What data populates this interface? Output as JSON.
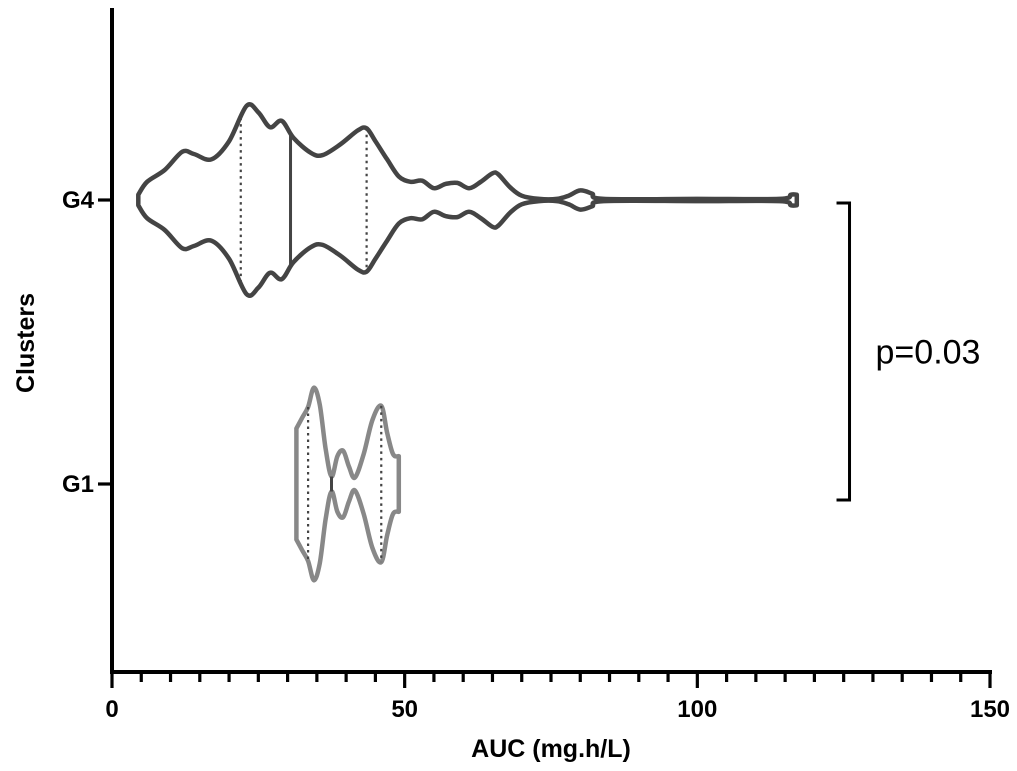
{
  "chart_data": {
    "type": "violin",
    "orientation": "horizontal",
    "xlabel": "AUC (mg.h/L)",
    "ylabel": "Clusters",
    "xlim": [
      0,
      150
    ],
    "x_ticks": [
      0,
      50,
      100,
      150
    ],
    "x_minor_step": 5,
    "categories": [
      "G4",
      "G1"
    ],
    "series": [
      {
        "category": "G4",
        "color": "#444444",
        "min": 4.5,
        "max": 117,
        "median": 30.5,
        "quartiles": [
          22,
          43.5
        ],
        "density": [
          [
            4.5,
            0.05
          ],
          [
            6,
            0.17
          ],
          [
            9,
            0.28
          ],
          [
            12,
            0.45
          ],
          [
            14,
            0.43
          ],
          [
            17,
            0.38
          ],
          [
            20,
            0.55
          ],
          [
            23,
            0.88
          ],
          [
            25,
            0.82
          ],
          [
            27,
            0.68
          ],
          [
            29,
            0.74
          ],
          [
            31,
            0.58
          ],
          [
            34,
            0.44
          ],
          [
            36,
            0.42
          ],
          [
            39,
            0.52
          ],
          [
            42,
            0.65
          ],
          [
            43.5,
            0.67
          ],
          [
            45,
            0.55
          ],
          [
            47,
            0.38
          ],
          [
            49,
            0.22
          ],
          [
            51,
            0.17
          ],
          [
            53,
            0.18
          ],
          [
            55,
            0.11
          ],
          [
            57,
            0.15
          ],
          [
            59,
            0.16
          ],
          [
            61,
            0.11
          ],
          [
            63,
            0.17
          ],
          [
            65,
            0.25
          ],
          [
            66,
            0.24
          ],
          [
            68,
            0.12
          ],
          [
            70,
            0.04
          ],
          [
            73,
            0.01
          ],
          [
            76,
            0.01
          ],
          [
            78,
            0.04
          ],
          [
            80,
            0.09
          ],
          [
            82,
            0.06
          ],
          [
            84,
            0.01
          ],
          [
            100,
            0.01
          ],
          [
            114,
            0.01
          ],
          [
            116,
            0.05
          ],
          [
            117,
            0.05
          ]
        ]
      },
      {
        "category": "G1",
        "color": "#888888",
        "min": 31.5,
        "max": 49,
        "median": 37.5,
        "quartiles": [
          33.5,
          46
        ],
        "density": [
          [
            31.5,
            0.52
          ],
          [
            32.5,
            0.62
          ],
          [
            33.5,
            0.72
          ],
          [
            34.5,
            0.9
          ],
          [
            35.5,
            0.74
          ],
          [
            36.5,
            0.33
          ],
          [
            37.5,
            0.07
          ],
          [
            38.5,
            0.26
          ],
          [
            39.5,
            0.31
          ],
          [
            40.5,
            0.16
          ],
          [
            41.5,
            0.06
          ],
          [
            43,
            0.28
          ],
          [
            44.5,
            0.6
          ],
          [
            46,
            0.73
          ],
          [
            47,
            0.48
          ],
          [
            48,
            0.28
          ],
          [
            49,
            0.26
          ]
        ]
      }
    ],
    "annotations": [
      {
        "text": "p=0.03",
        "between": [
          "G4",
          "G1"
        ],
        "x": 126
      }
    ]
  }
}
